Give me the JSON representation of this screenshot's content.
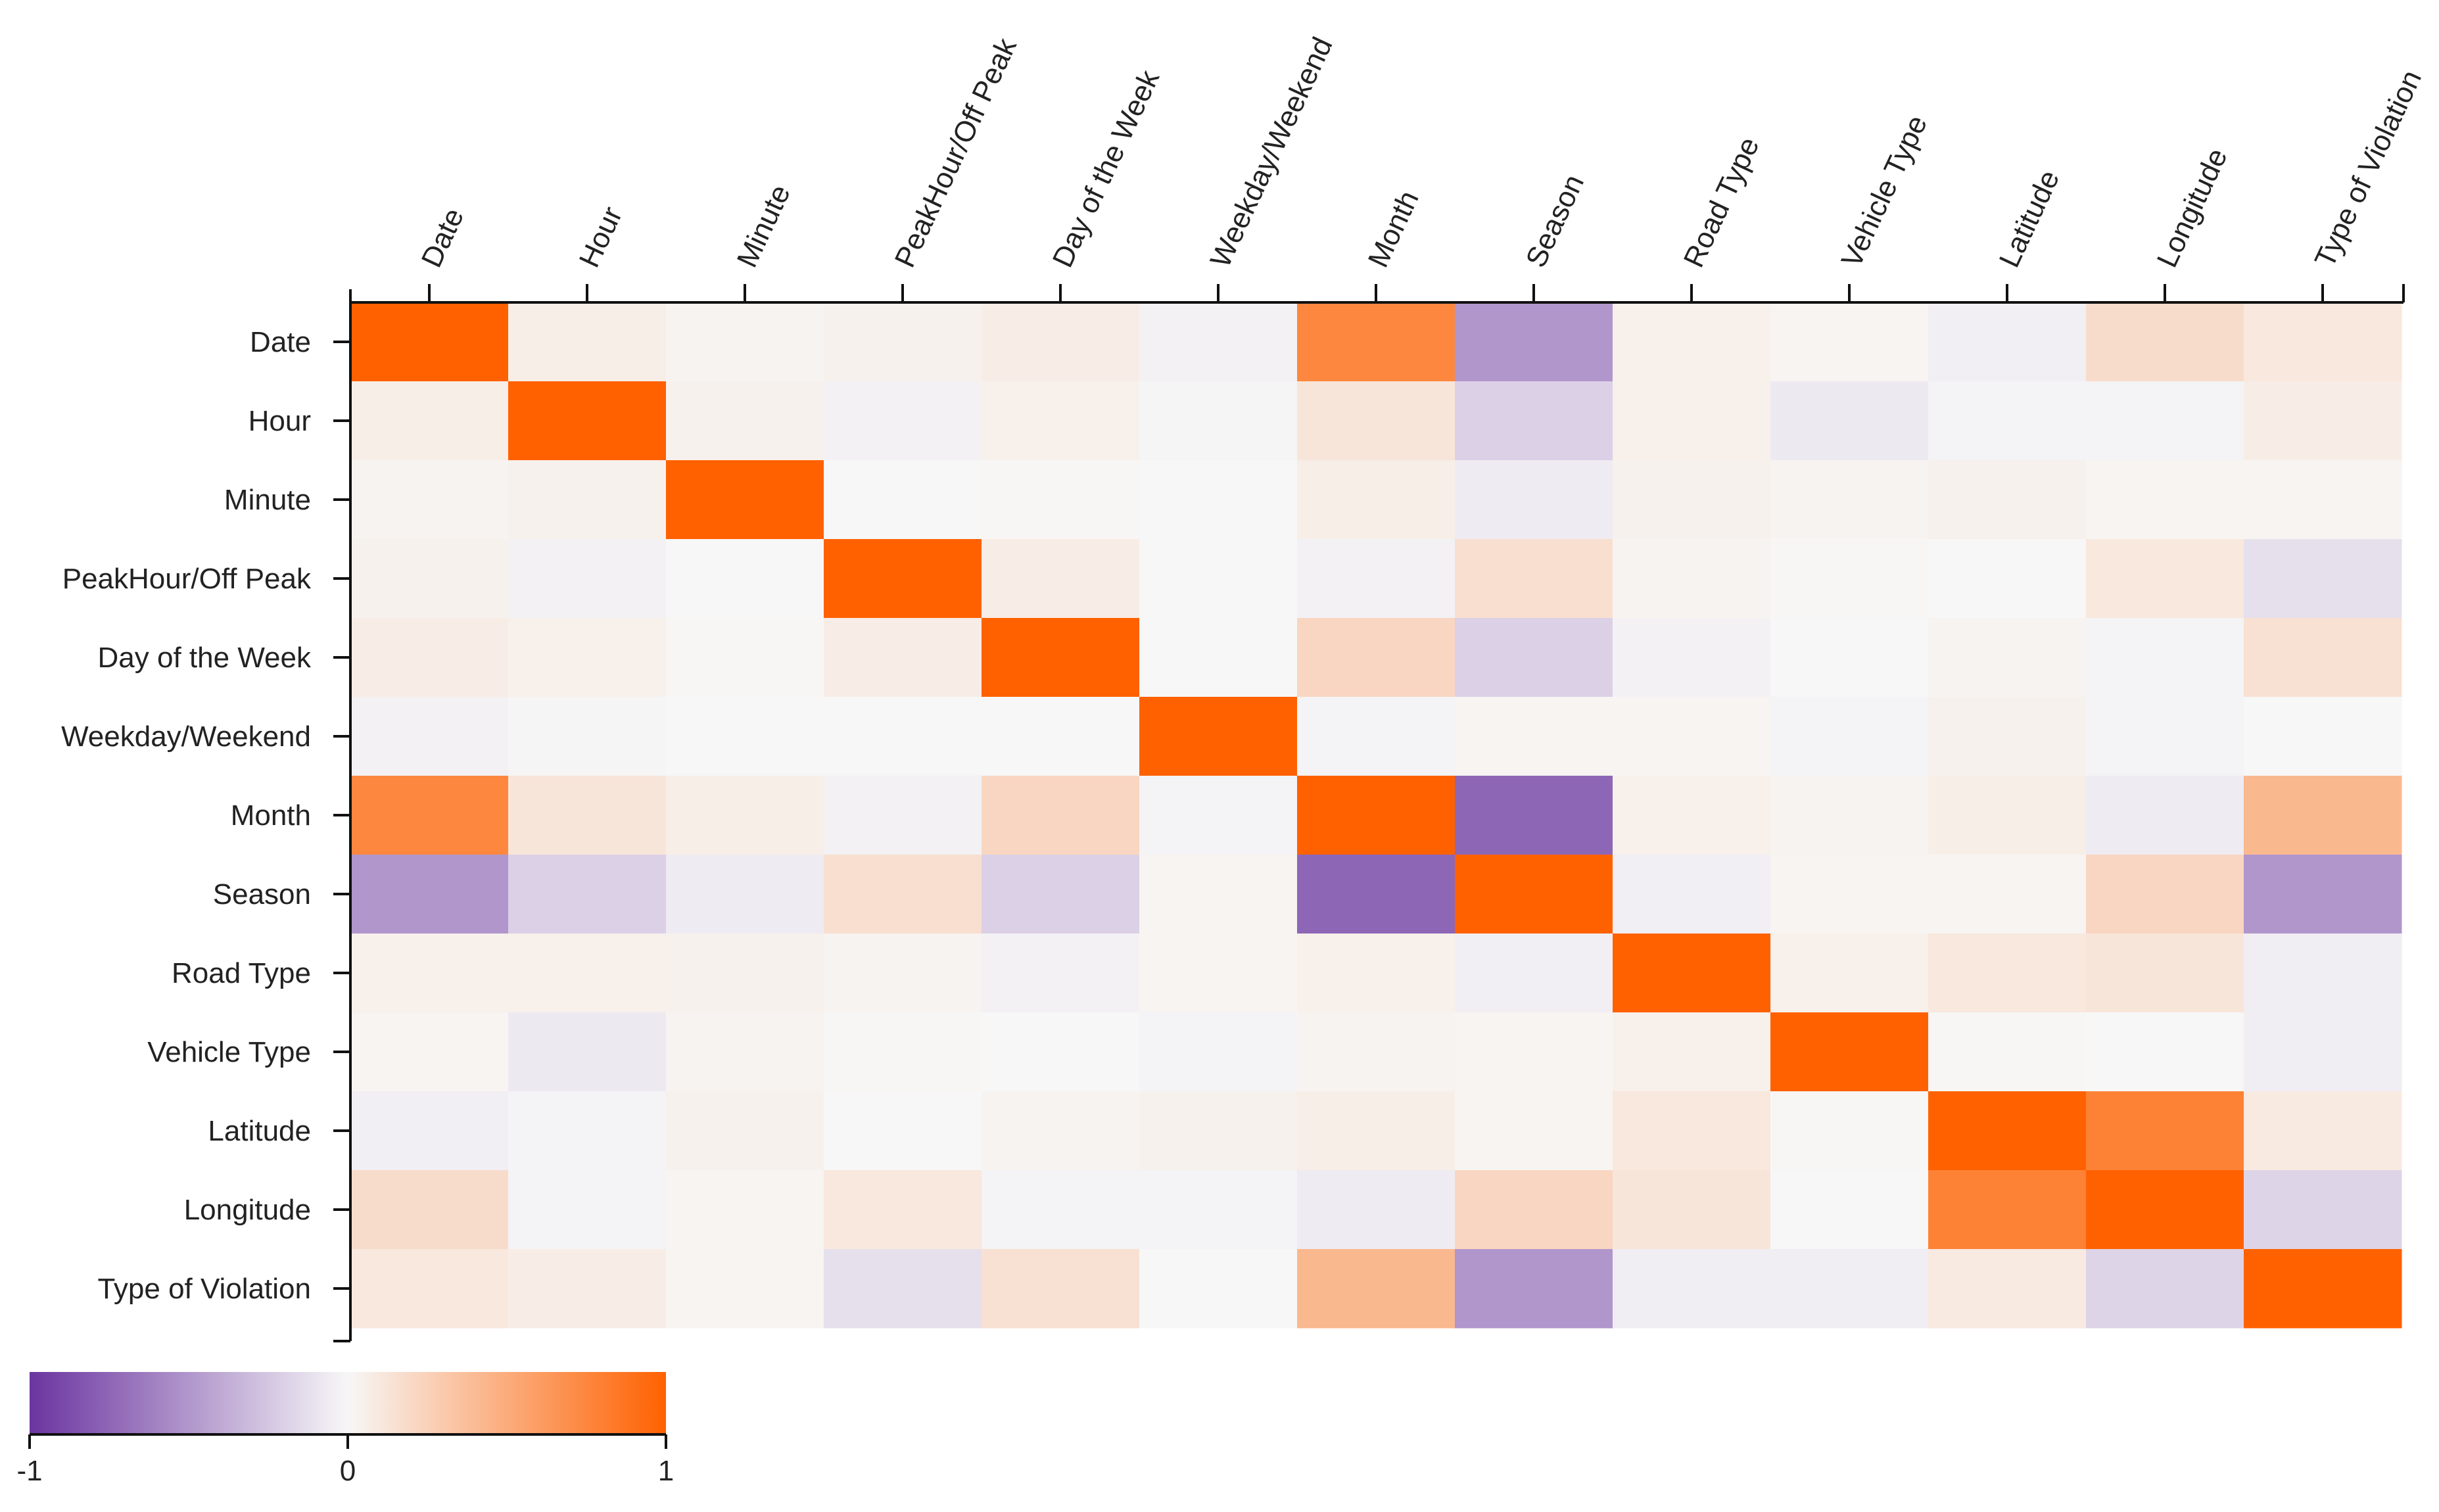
{
  "chart_data": {
    "type": "heatmap",
    "title": "",
    "variables": [
      "Date",
      "Hour",
      "Minute",
      "PeakHour/Off Peak",
      "Day of the Week",
      "Weekday/Weekend",
      "Month",
      "Season",
      "Road Type",
      "Vehicle Type",
      "Latitude",
      "Longitude",
      "Type of Violation"
    ],
    "values": [
      [
        1.0,
        0.06,
        0.03,
        0.04,
        0.07,
        -0.03,
        0.75,
        -0.5,
        0.05,
        0.02,
        -0.04,
        0.18,
        0.1
      ],
      [
        0.06,
        1.0,
        0.04,
        -0.03,
        0.05,
        -0.01,
        0.12,
        -0.2,
        0.05,
        -0.07,
        -0.02,
        -0.02,
        0.07
      ],
      [
        0.03,
        0.04,
        1.0,
        0.0,
        0.01,
        0.0,
        0.06,
        -0.06,
        0.04,
        0.03,
        0.04,
        0.02,
        0.02
      ],
      [
        0.04,
        -0.03,
        0.0,
        1.0,
        0.07,
        0.0,
        -0.03,
        0.16,
        0.03,
        0.01,
        0.0,
        0.1,
        -0.12
      ],
      [
        0.07,
        0.05,
        0.01,
        0.07,
        1.0,
        0.0,
        0.22,
        -0.2,
        -0.03,
        0.0,
        0.03,
        -0.02,
        0.15
      ],
      [
        -0.03,
        -0.01,
        0.0,
        0.0,
        0.0,
        1.0,
        -0.02,
        0.02,
        0.02,
        -0.02,
        0.04,
        -0.02,
        0.0
      ],
      [
        0.75,
        0.12,
        0.06,
        -0.03,
        0.22,
        -0.02,
        1.0,
        -0.75,
        0.05,
        0.03,
        0.06,
        -0.06,
        0.42
      ],
      [
        -0.5,
        -0.2,
        -0.06,
        0.16,
        -0.2,
        0.02,
        -0.75,
        1.0,
        -0.04,
        0.02,
        0.02,
        0.22,
        -0.5
      ],
      [
        0.05,
        0.05,
        0.04,
        0.03,
        -0.03,
        0.02,
        0.05,
        -0.04,
        1.0,
        0.05,
        0.1,
        0.12,
        -0.05
      ],
      [
        0.02,
        -0.07,
        0.03,
        0.01,
        0.0,
        -0.02,
        0.03,
        0.02,
        0.05,
        1.0,
        0.01,
        0.0,
        -0.05
      ],
      [
        -0.04,
        -0.02,
        0.04,
        0.0,
        0.03,
        0.04,
        0.06,
        0.02,
        0.1,
        0.01,
        1.0,
        0.78,
        0.09
      ],
      [
        0.18,
        -0.02,
        0.02,
        0.1,
        -0.02,
        -0.02,
        -0.06,
        0.22,
        0.12,
        0.0,
        0.78,
        1.0,
        -0.18
      ],
      [
        0.1,
        0.07,
        0.02,
        -0.12,
        0.15,
        0.0,
        0.42,
        -0.5,
        -0.05,
        -0.05,
        0.09,
        -0.18,
        1.0
      ]
    ],
    "color_scale": {
      "min": -1,
      "max": 1,
      "negative_color": "#6B35A0",
      "neutral_color": "#F7F7F7",
      "positive_color": "#FF6100",
      "tick_labels": [
        "-1",
        "0",
        "1"
      ]
    },
    "legend_position": "bottom-left"
  }
}
